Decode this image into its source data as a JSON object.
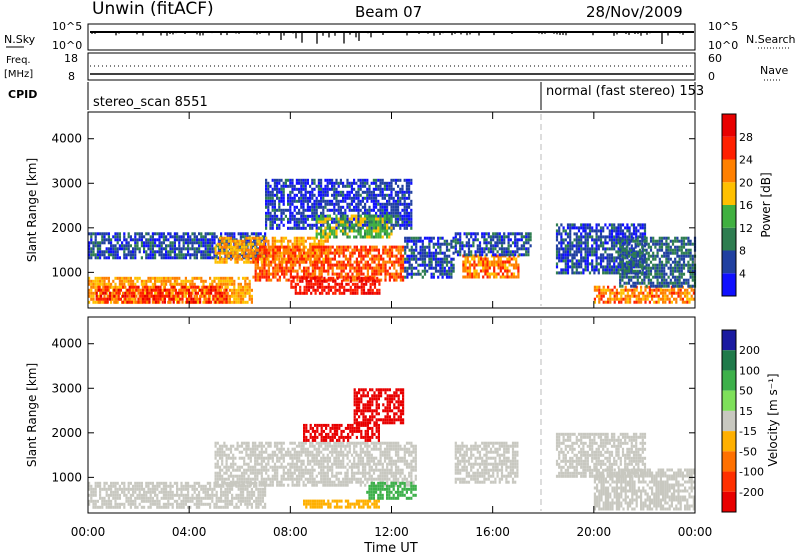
{
  "header": {
    "station": "Unwin (fitACF)",
    "beam": "Beam 07",
    "date": "28/Nov/2009"
  },
  "nsky_panel": {
    "left_label": "N.Sky",
    "left_ticks": [
      "10^5",
      "10^0"
    ],
    "right_label": "N.Search",
    "right_ticks": [
      "10^5",
      "10^0"
    ]
  },
  "freq_panel": {
    "left_label_line1": "Freq.",
    "left_label_line2": "[MHz]",
    "left_ticks": [
      "18",
      "8"
    ],
    "right_label": "Nave",
    "right_ticks": [
      "60",
      "0"
    ]
  },
  "cpid_panel": {
    "label": "CPID",
    "modes": [
      {
        "name": "stereo_scan 8551",
        "start_hour": 0
      },
      {
        "name": "normal (fast stereo) 153",
        "start_hour": 18
      }
    ]
  },
  "power_panel": {
    "ylabel": "Slant Range [km]",
    "yticks": [
      "1000",
      "2000",
      "3000",
      "4000"
    ],
    "colorbar_label": "Power [dB]",
    "colorbar_ticks": [
      "4",
      "8",
      "12",
      "16",
      "20",
      "24",
      "28"
    ],
    "colors": [
      "#1010ff",
      "#2040a0",
      "#2e7d50",
      "#40b040",
      "#ffc000",
      "#ff8000",
      "#ff2000",
      "#e80000"
    ]
  },
  "velocity_panel": {
    "ylabel": "Slant Range [km]",
    "yticks": [
      "1000",
      "2000",
      "3000",
      "4000"
    ],
    "colorbar_label": "Velocity [m s⁻¹]",
    "colorbar_ticks": [
      "200",
      "100",
      "50",
      "15",
      "-15",
      "-50",
      "-100",
      "-200"
    ],
    "colors": [
      "#1a1aa0",
      "#1f7a4a",
      "#3db04a",
      "#7ee05a",
      "#c8c8c0",
      "#ffb000",
      "#ff7000",
      "#ff3000",
      "#e80000"
    ]
  },
  "x_axis": {
    "label": "Time UT",
    "ticks": [
      "00:00",
      "04:00",
      "08:00",
      "12:00",
      "16:00",
      "20:00",
      "00:00"
    ]
  },
  "chart_data": {
    "type": "heatmap",
    "title": "Unwin (fitACF)  Beam 07  28/Nov/2009",
    "xlabel": "Time UT",
    "ylabel": "Slant Range [km]",
    "xlim_hours": [
      0,
      24
    ],
    "ylim_km": [
      200,
      4600
    ],
    "mode_change_hour": 18,
    "power_regions": [
      {
        "t0": 0.0,
        "t1": 6.5,
        "r0": 300,
        "r1": 900,
        "level": 20
      },
      {
        "t0": 0.3,
        "t1": 5.5,
        "r0": 350,
        "r1": 700,
        "level": 26
      },
      {
        "t0": 0.0,
        "t1": 7.0,
        "r0": 1300,
        "r1": 1900,
        "level": 6
      },
      {
        "t0": 5.0,
        "t1": 9.5,
        "r0": 1200,
        "r1": 1800,
        "level": 20
      },
      {
        "t0": 6.5,
        "t1": 12.5,
        "r0": 800,
        "r1": 1600,
        "level": 24
      },
      {
        "t0": 8.0,
        "t1": 11.5,
        "r0": 500,
        "r1": 900,
        "level": 28
      },
      {
        "t0": 7.0,
        "t1": 12.8,
        "r0": 2000,
        "r1": 3100,
        "level": 5
      },
      {
        "t0": 9.0,
        "t1": 12.0,
        "r0": 1800,
        "r1": 2300,
        "level": 14
      },
      {
        "t0": 12.5,
        "t1": 14.5,
        "r0": 900,
        "r1": 1800,
        "level": 6
      },
      {
        "t0": 14.8,
        "t1": 17.0,
        "r0": 900,
        "r1": 1400,
        "level": 22
      },
      {
        "t0": 14.5,
        "t1": 17.5,
        "r0": 1400,
        "r1": 1900,
        "level": 6
      },
      {
        "t0": 18.5,
        "t1": 22.0,
        "r0": 1000,
        "r1": 2100,
        "level": 6
      },
      {
        "t0": 20.0,
        "t1": 24.0,
        "r0": 300,
        "r1": 700,
        "level": 22
      },
      {
        "t0": 21.0,
        "t1": 24.0,
        "r0": 700,
        "r1": 1800,
        "level": 8
      }
    ],
    "velocity_regions": [
      {
        "t0": 0.0,
        "t1": 7.0,
        "r0": 300,
        "r1": 900,
        "vel": 0
      },
      {
        "t0": 5.0,
        "t1": 13.0,
        "r0": 800,
        "r1": 1800,
        "vel": 0
      },
      {
        "t0": 8.5,
        "t1": 11.5,
        "r0": 1800,
        "r1": 2200,
        "vel": -220
      },
      {
        "t0": 10.5,
        "t1": 12.5,
        "r0": 2200,
        "r1": 3000,
        "vel": -200
      },
      {
        "t0": 8.5,
        "t1": 11.5,
        "r0": 300,
        "r1": 500,
        "vel": -40
      },
      {
        "t0": 11.0,
        "t1": 13.0,
        "r0": 500,
        "r1": 900,
        "vel": 40
      },
      {
        "t0": 14.5,
        "t1": 17.0,
        "r0": 900,
        "r1": 1800,
        "vel": 0
      },
      {
        "t0": 20.0,
        "t1": 24.0,
        "r0": 300,
        "r1": 1200,
        "vel": 0
      },
      {
        "t0": 18.5,
        "t1": 22.0,
        "r0": 1000,
        "r1": 2000,
        "vel": 0
      }
    ]
  }
}
